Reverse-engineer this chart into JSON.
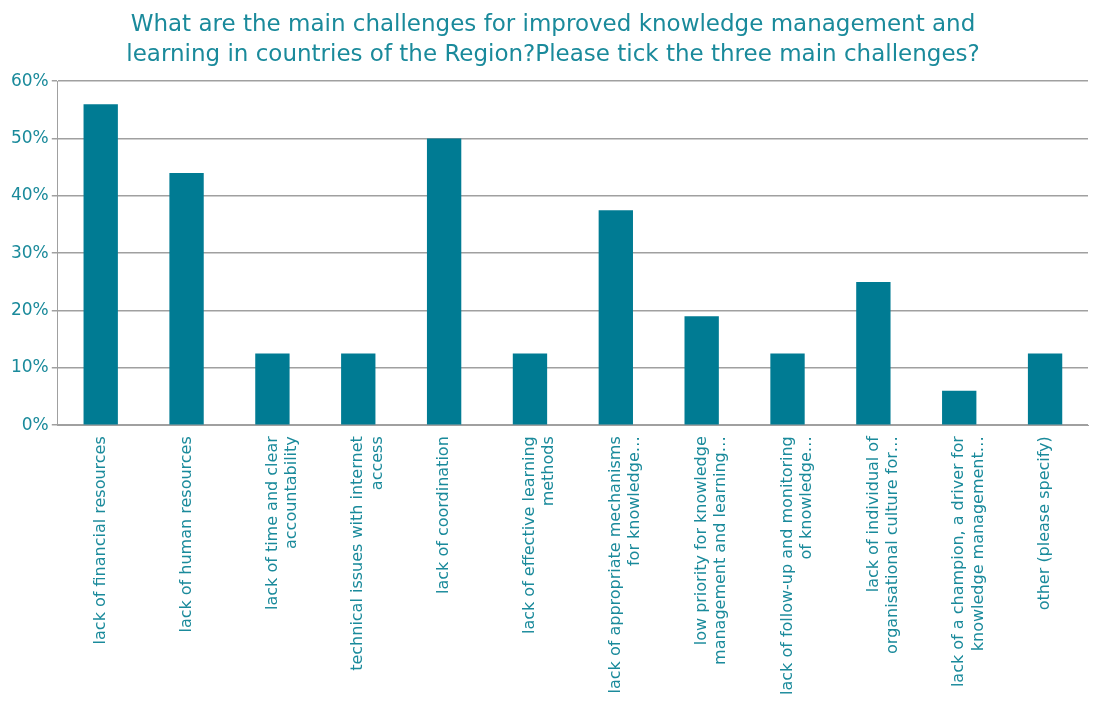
{
  "chart_data": {
    "type": "bar",
    "title": "What are the main challenges for improved knowledge management and learning in countries of the Region?Please tick the three main challenges?",
    "categories": [
      "lack of financial resources",
      "lack of human resources",
      "lack of time and clear accountability",
      "technical issues with internet access",
      "lack of coordination",
      "lack of effective learning methods",
      "lack of appropriate mechanisms for knowledge…",
      "low priority for knowledge management and learning…",
      "lack of follow-up and monitoring of knowledge…",
      "lack of individual of organisational culture for…",
      "lack of a champion, a driver for knowledge management…",
      "other (please specify)"
    ],
    "values": [
      56,
      44,
      12.5,
      12.5,
      50,
      12.5,
      37.5,
      19,
      12.5,
      25,
      6,
      12.5
    ],
    "color": "#007b93",
    "ylim": [
      0,
      60
    ],
    "yticks": [
      {
        "value": 0,
        "label": "0%"
      },
      {
        "value": 10,
        "label": "10%"
      },
      {
        "value": 20,
        "label": "20%"
      },
      {
        "value": 30,
        "label": "30%"
      },
      {
        "value": 40,
        "label": "40%"
      },
      {
        "value": 50,
        "label": "50%"
      },
      {
        "value": 60,
        "label": "60%"
      }
    ],
    "grid": "y"
  }
}
